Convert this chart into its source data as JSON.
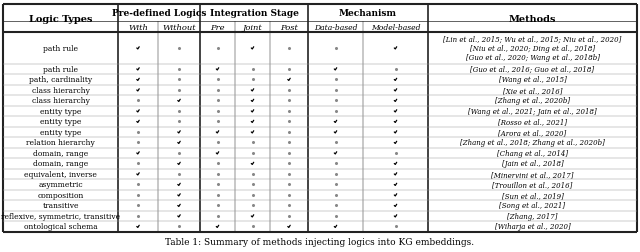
{
  "title": "Table 1: Summary of methods injecting logics into KG embeddings.",
  "rows": [
    {
      "logic": "path rule",
      "with": 1,
      "without": 0,
      "pre": 0,
      "joint": 1,
      "post": 0,
      "data_based": 0,
      "model_based": 1,
      "methods": "[Lin et al., 2015; Wu et al., 2015; Niu et al., 2020]\n[Niu et al., 2020; Ding et al., 2018]\n[Guo et al., 2020; Wang et al., 2018b]",
      "row_span": 3
    },
    {
      "logic": "path rule",
      "with": 1,
      "without": 0,
      "pre": 1,
      "joint": 0,
      "post": 0,
      "data_based": 1,
      "model_based": 0,
      "methods": "[Guo et al., 2016; Guo et al., 2018]",
      "row_span": 1
    },
    {
      "logic": "path, cardinality",
      "with": 1,
      "without": 0,
      "pre": 0,
      "joint": 0,
      "post": 1,
      "data_based": 0,
      "model_based": 1,
      "methods": "[Wang et al., 2015]",
      "row_span": 1
    },
    {
      "logic": "class hierarchy",
      "with": 1,
      "without": 0,
      "pre": 0,
      "joint": 1,
      "post": 0,
      "data_based": 0,
      "model_based": 1,
      "methods": "[Xie et al., 2016]",
      "row_span": 1
    },
    {
      "logic": "class hierarchy",
      "with": 0,
      "without": 1,
      "pre": 0,
      "joint": 1,
      "post": 0,
      "data_based": 0,
      "model_based": 1,
      "methods": "[Zhang et al., 2020b]",
      "row_span": 1
    },
    {
      "logic": "entity type",
      "with": 1,
      "without": 0,
      "pre": 0,
      "joint": 1,
      "post": 0,
      "data_based": 0,
      "model_based": 1,
      "methods": "[Wang et al., 2021; Jain et al., 2018]",
      "row_span": 1
    },
    {
      "logic": "entity type",
      "with": 1,
      "without": 0,
      "pre": 0,
      "joint": 1,
      "post": 0,
      "data_based": 1,
      "model_based": 1,
      "methods": "[Rosso et al., 2021]",
      "row_span": 1
    },
    {
      "logic": "entity type",
      "with": 0,
      "without": 1,
      "pre": 1,
      "joint": 1,
      "post": 0,
      "data_based": 1,
      "model_based": 1,
      "methods": "[Arora et al., 2020]",
      "row_span": 1
    },
    {
      "logic": "relation hierarchy",
      "with": 0,
      "without": 1,
      "pre": 0,
      "joint": 0,
      "post": 0,
      "data_based": 0,
      "model_based": 1,
      "methods": "[Zhang et al., 2018; Zhang et al., 2020b]",
      "row_span": 1
    },
    {
      "logic": "domain, range",
      "with": 1,
      "without": 0,
      "pre": 1,
      "joint": 0,
      "post": 0,
      "data_based": 1,
      "model_based": 0,
      "methods": "[Chang et al., 2014]",
      "row_span": 1
    },
    {
      "logic": "domain, range",
      "with": 0,
      "without": 1,
      "pre": 0,
      "joint": 1,
      "post": 0,
      "data_based": 0,
      "model_based": 1,
      "methods": "[Jain et al., 2018]",
      "row_span": 1
    },
    {
      "logic": "equivalent, inverse",
      "with": 1,
      "without": 0,
      "pre": 0,
      "joint": 0,
      "post": 0,
      "data_based": 0,
      "model_based": 1,
      "methods": "[Minervini et al., 2017]",
      "row_span": 1
    },
    {
      "logic": "asymmetric",
      "with": 0,
      "without": 1,
      "pre": 0,
      "joint": 0,
      "post": 0,
      "data_based": 0,
      "model_based": 1,
      "methods": "[Trouillon et al., 2016]",
      "row_span": 1
    },
    {
      "logic": "composition",
      "with": 0,
      "without": 1,
      "pre": 0,
      "joint": 0,
      "post": 0,
      "data_based": 0,
      "model_based": 1,
      "methods": "[Sun et al., 2019]",
      "row_span": 1
    },
    {
      "logic": "transitive",
      "with": 0,
      "without": 1,
      "pre": 0,
      "joint": 0,
      "post": 0,
      "data_based": 0,
      "model_based": 1,
      "methods": "[Song et al., 2021]",
      "row_span": 1
    },
    {
      "logic": "reflexive, symmetric, transitive",
      "with": 0,
      "without": 1,
      "pre": 0,
      "joint": 1,
      "post": 0,
      "data_based": 0,
      "model_based": 1,
      "methods": "[Zhang, 2017]",
      "row_span": 1
    },
    {
      "logic": "ontological schema",
      "with": 1,
      "without": 0,
      "pre": 1,
      "joint": 0,
      "post": 1,
      "data_based": 1,
      "model_based": 0,
      "methods": "[Wiharja et al., 2020]",
      "row_span": 1
    }
  ]
}
